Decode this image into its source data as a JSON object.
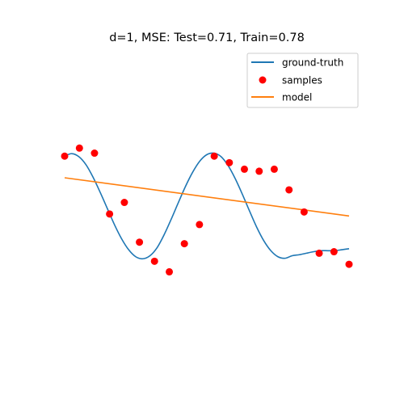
{
  "chart_data": {
    "type": "scatter",
    "title": "d=1, MSE: Test=0.71, Train=0.78",
    "axes_visible": false,
    "xlim": [
      0,
      1
    ],
    "ylim": [
      -2,
      2
    ],
    "legend": {
      "placement": "top-right",
      "entries": [
        {
          "name": "ground-truth",
          "kind": "line",
          "color": "#1f77b4"
        },
        {
          "name": "samples",
          "kind": "marker",
          "color": "#ff0000"
        },
        {
          "name": "model",
          "kind": "line",
          "color": "#ff7f0e"
        }
      ]
    },
    "series": [
      {
        "name": "ground-truth",
        "type": "line",
        "color": "#1f77b4",
        "x": [
          0.0,
          0.025,
          0.05,
          0.075,
          0.1,
          0.125,
          0.15,
          0.175,
          0.2,
          0.225,
          0.25,
          0.275,
          0.3,
          0.325,
          0.35,
          0.375,
          0.4,
          0.425,
          0.45,
          0.475,
          0.5,
          0.525,
          0.55,
          0.575,
          0.6,
          0.625,
          0.65,
          0.675,
          0.7,
          0.725,
          0.75,
          0.775,
          0.8,
          0.825,
          0.85,
          0.875,
          0.9,
          0.925,
          0.95,
          0.975,
          1.0
        ],
        "y": [
          1.0,
          1.05,
          0.99,
          0.83,
          0.58,
          0.28,
          -0.04,
          -0.36,
          -0.64,
          -0.86,
          -1.0,
          -1.04,
          -0.98,
          -0.82,
          -0.56,
          -0.25,
          0.08,
          0.4,
          0.68,
          0.9,
          1.03,
          1.06,
          0.99,
          0.81,
          0.55,
          0.24,
          -0.09,
          -0.41,
          -0.68,
          -0.88,
          -1.0,
          -1.03,
          -0.98,
          -0.96,
          -0.93,
          -0.9,
          -0.88,
          -0.88,
          -0.88,
          -0.86,
          -0.84
        ]
      },
      {
        "name": "samples",
        "type": "scatter",
        "color": "#ff0000",
        "x": [
          0.0,
          0.052,
          0.105,
          0.158,
          0.21,
          0.263,
          0.316,
          0.368,
          0.421,
          0.474,
          0.526,
          0.579,
          0.632,
          0.684,
          0.737,
          0.789,
          0.842,
          0.895,
          0.947,
          1.0
        ],
        "y": [
          1.0,
          1.16,
          1.06,
          -0.15,
          0.08,
          -0.71,
          -1.09,
          -1.3,
          -0.74,
          -0.36,
          1.0,
          0.87,
          0.74,
          0.7,
          0.74,
          0.33,
          -0.11,
          -0.93,
          -0.9,
          -1.15
        ]
      },
      {
        "name": "model",
        "type": "line",
        "color": "#ff7f0e",
        "x": [
          0.0,
          1.0
        ],
        "y": [
          0.57,
          -0.19
        ]
      }
    ]
  }
}
